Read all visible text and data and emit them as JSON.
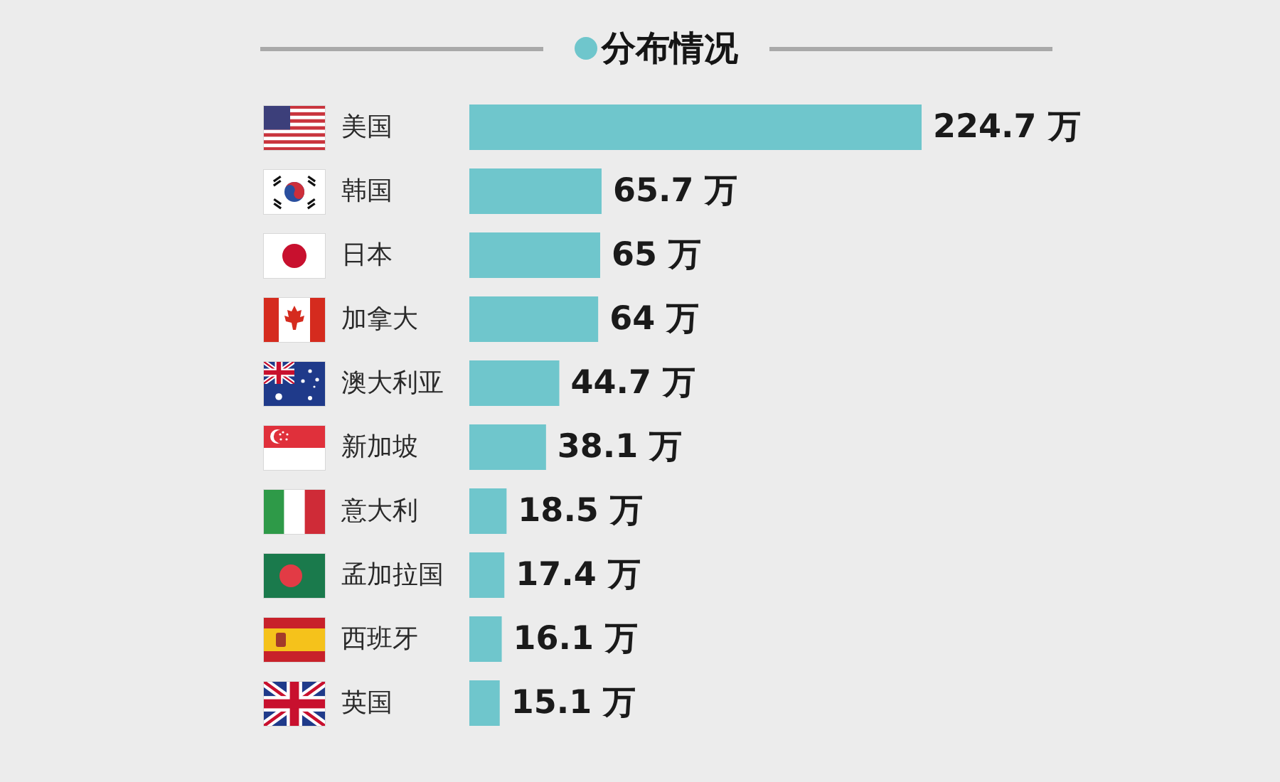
{
  "chart_data": {
    "type": "bar",
    "orientation": "horizontal",
    "title": "分布情况",
    "categories": [
      "美国",
      "韩国",
      "日本",
      "加拿大",
      "澳大利亚",
      "新加坡",
      "意大利",
      "孟加拉国",
      "西班牙",
      "英国"
    ],
    "values": [
      224.7,
      65.7,
      65,
      64,
      44.7,
      38.1,
      18.5,
      17.4,
      16.1,
      15.1
    ],
    "value_labels": [
      "224.7 万",
      "65.7 万",
      "65 万",
      "64 万",
      "44.7 万",
      "38.1 万",
      "18.5 万",
      "17.4 万",
      "16.1 万",
      "15.1 万"
    ],
    "color": "#6fc6cc",
    "tick_labels": "y"
  }
}
